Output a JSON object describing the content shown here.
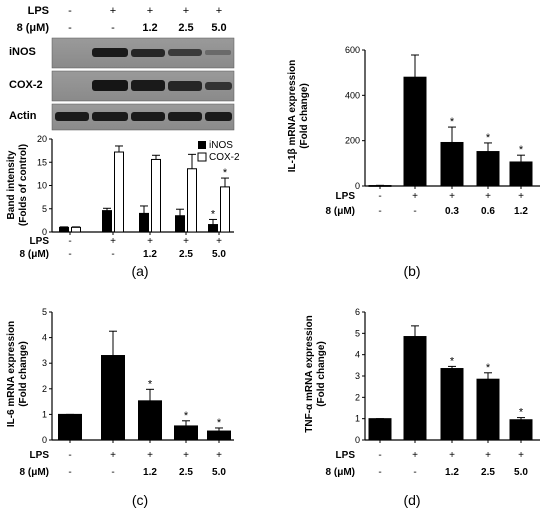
{
  "colors": {
    "bar_dark": "#000000",
    "bar_light": "#ffffff",
    "axis": "#000000"
  },
  "panels": {
    "a": {
      "label": "(a)",
      "header_rows": [
        {
          "label": "LPS",
          "values": [
            "-",
            "+",
            "+",
            "+",
            "+"
          ]
        },
        {
          "label": "8 (μM)",
          "values": [
            "-",
            "-",
            "1.2",
            "2.5",
            "5.0"
          ]
        }
      ],
      "blot_labels": [
        "iNOS",
        "COX-2",
        "Actin"
      ],
      "legend_labels": [
        "iNOS",
        "COX-2"
      ]
    },
    "b": {
      "label": "(b)"
    },
    "c": {
      "label": "(c)"
    },
    "d": {
      "label": "(d)"
    }
  },
  "chart_data": [
    {
      "id": "a",
      "type": "bar",
      "ylabel": "Band intensity\n(Folds of control)",
      "ylim": [
        0,
        20
      ],
      "yticks": [
        0,
        5,
        10,
        15,
        20
      ],
      "categories": [
        "1",
        "2",
        "3",
        "4",
        "5"
      ],
      "row_labels": [
        "LPS",
        "8 (μM)"
      ],
      "rows": [
        [
          "-",
          "+",
          "+",
          "+",
          "+"
        ],
        [
          "-",
          "-",
          "1.2",
          "2.5",
          "5.0"
        ]
      ],
      "series": [
        {
          "name": "iNOS",
          "color": "#000000",
          "values": [
            1.0,
            4.6,
            4.0,
            3.5,
            1.6
          ],
          "errors": [
            0.1,
            0.5,
            1.6,
            1.4,
            1.1
          ],
          "sig": [
            false,
            false,
            false,
            false,
            true
          ]
        },
        {
          "name": "COX-2",
          "color": "#ffffff",
          "values": [
            1.0,
            17.2,
            15.6,
            13.6,
            9.7
          ],
          "errors": [
            0.1,
            1.3,
            0.9,
            3.1,
            1.9
          ],
          "sig": [
            false,
            false,
            false,
            false,
            true
          ]
        }
      ],
      "legend": "top-right",
      "grid": false
    },
    {
      "id": "b",
      "type": "bar",
      "ylabel": "IL-1β mRNA expression\n(Fold change)",
      "ylim": [
        0,
        600
      ],
      "yticks": [
        0,
        200,
        400,
        600
      ],
      "categories": [
        "1",
        "2",
        "3",
        "4",
        "5"
      ],
      "row_labels": [
        "LPS",
        "8 (μM)"
      ],
      "rows": [
        [
          "-",
          "+",
          "+",
          "+",
          "+"
        ],
        [
          "-",
          "-",
          "0.3",
          "0.6",
          "1.2"
        ]
      ],
      "values": [
        2,
        480,
        192,
        152,
        106
      ],
      "errors": [
        1,
        98,
        68,
        38,
        30
      ],
      "sig": [
        false,
        false,
        true,
        true,
        true
      ],
      "grid": false
    },
    {
      "id": "c",
      "type": "bar",
      "ylabel": "IL-6 mRNA expression\n(Fold change)",
      "ylim": [
        0,
        5
      ],
      "yticks": [
        0,
        1,
        2,
        3,
        4,
        5
      ],
      "categories": [
        "1",
        "2",
        "3",
        "4",
        "5"
      ],
      "row_labels": [
        "LPS",
        "8 (μM)"
      ],
      "rows": [
        [
          "-",
          "+",
          "+",
          "+",
          "+"
        ],
        [
          "-",
          "-",
          "1.2",
          "2.5",
          "5.0"
        ]
      ],
      "values": [
        1.0,
        3.3,
        1.53,
        0.55,
        0.35
      ],
      "errors": [
        0.0,
        0.95,
        0.45,
        0.2,
        0.12
      ],
      "sig": [
        false,
        false,
        true,
        true,
        true
      ],
      "grid": false
    },
    {
      "id": "d",
      "type": "bar",
      "ylabel": "TNF-α mRNA expression\n(Fold change)",
      "ylim": [
        0,
        6
      ],
      "yticks": [
        0,
        1,
        2,
        3,
        4,
        5,
        6
      ],
      "categories": [
        "1",
        "2",
        "3",
        "4",
        "5"
      ],
      "row_labels": [
        "LPS",
        "8 (μM)"
      ],
      "rows": [
        [
          "-",
          "+",
          "+",
          "+",
          "+"
        ],
        [
          "-",
          "-",
          "1.2",
          "2.5",
          "5.0"
        ]
      ],
      "values": [
        1.0,
        4.85,
        3.35,
        2.85,
        0.95
      ],
      "errors": [
        0.0,
        0.5,
        0.1,
        0.3,
        0.1
      ],
      "sig": [
        false,
        false,
        true,
        true,
        true
      ],
      "grid": false
    }
  ]
}
